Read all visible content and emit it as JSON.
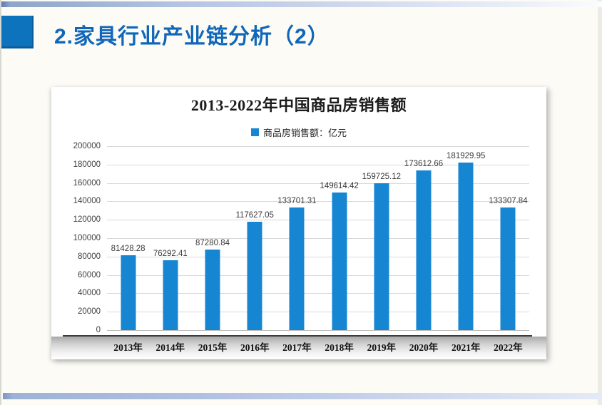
{
  "slide": {
    "header": {
      "title": "2.家具行业产业链分析（2）"
    },
    "colors": {
      "header_text_blue": "#1066b9",
      "logo_blue": "#0d73bd",
      "bar_blue": "#1686d3",
      "gridline_gray": "#d9d9d9"
    }
  },
  "chart_data": {
    "type": "bar",
    "title": "2013-2022年中国商品房销售额",
    "legend": "商品房销售额：亿元",
    "legend_position": "top",
    "grid": true,
    "categories": [
      "2013年",
      "2014年",
      "2015年",
      "2016年",
      "2017年",
      "2018年",
      "2019年",
      "2020年",
      "2021年",
      "2022年"
    ],
    "values": [
      81428.28,
      76292.41,
      87280.84,
      117627.05,
      133701.31,
      149614.42,
      159725.12,
      173612.66,
      181929.95,
      133307.84
    ],
    "value_labels": [
      "81428.28",
      "76292.41",
      "87280.84",
      "117627.05",
      "133701.31",
      "149614.42",
      "159725.12",
      "173612.66",
      "181929.95",
      "133307.84"
    ],
    "xlabel": "",
    "ylabel": "",
    "ylim": [
      0,
      200000
    ],
    "ytick_step": 20000,
    "yticks": [
      "0",
      "20000",
      "40000",
      "60000",
      "80000",
      "100000",
      "120000",
      "140000",
      "160000",
      "180000",
      "200000"
    ],
    "bar_color": "#1686d3"
  }
}
